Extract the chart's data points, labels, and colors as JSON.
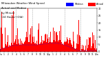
{
  "n_points": 1440,
  "y_max": 30,
  "y_min": 0,
  "background_color": "#ffffff",
  "plot_bg_color": "#ffffff",
  "bar_color": "#ff0000",
  "median_color": "#0000ff",
  "title_fontsize": 2.8,
  "ylabel_fontsize": 2.5,
  "xlabel_fontsize": 2.2,
  "legend_fontsize": 2.5,
  "seed": 42,
  "grid_positions": [
    240,
    480,
    720,
    960,
    1200
  ],
  "grid_color": "#aaaaaa",
  "x_tick_positions": [
    0,
    60,
    120,
    180,
    240,
    300,
    360,
    420,
    480,
    540,
    600,
    660,
    720,
    780,
    840,
    900,
    960,
    1020,
    1080,
    1140,
    1200,
    1260,
    1320,
    1380,
    1439
  ],
  "x_tick_labels": [
    "12a",
    "1",
    "2",
    "3",
    "4",
    "5",
    "6",
    "7",
    "8",
    "9",
    "10",
    "11",
    "12p",
    "1",
    "2",
    "3",
    "4",
    "5",
    "6",
    "7",
    "8",
    "9",
    "10",
    "11",
    "12a"
  ],
  "y_ticks": [
    0,
    5,
    10,
    15,
    20,
    25,
    30
  ],
  "legend_actual": "Actual",
  "legend_median": "Median"
}
